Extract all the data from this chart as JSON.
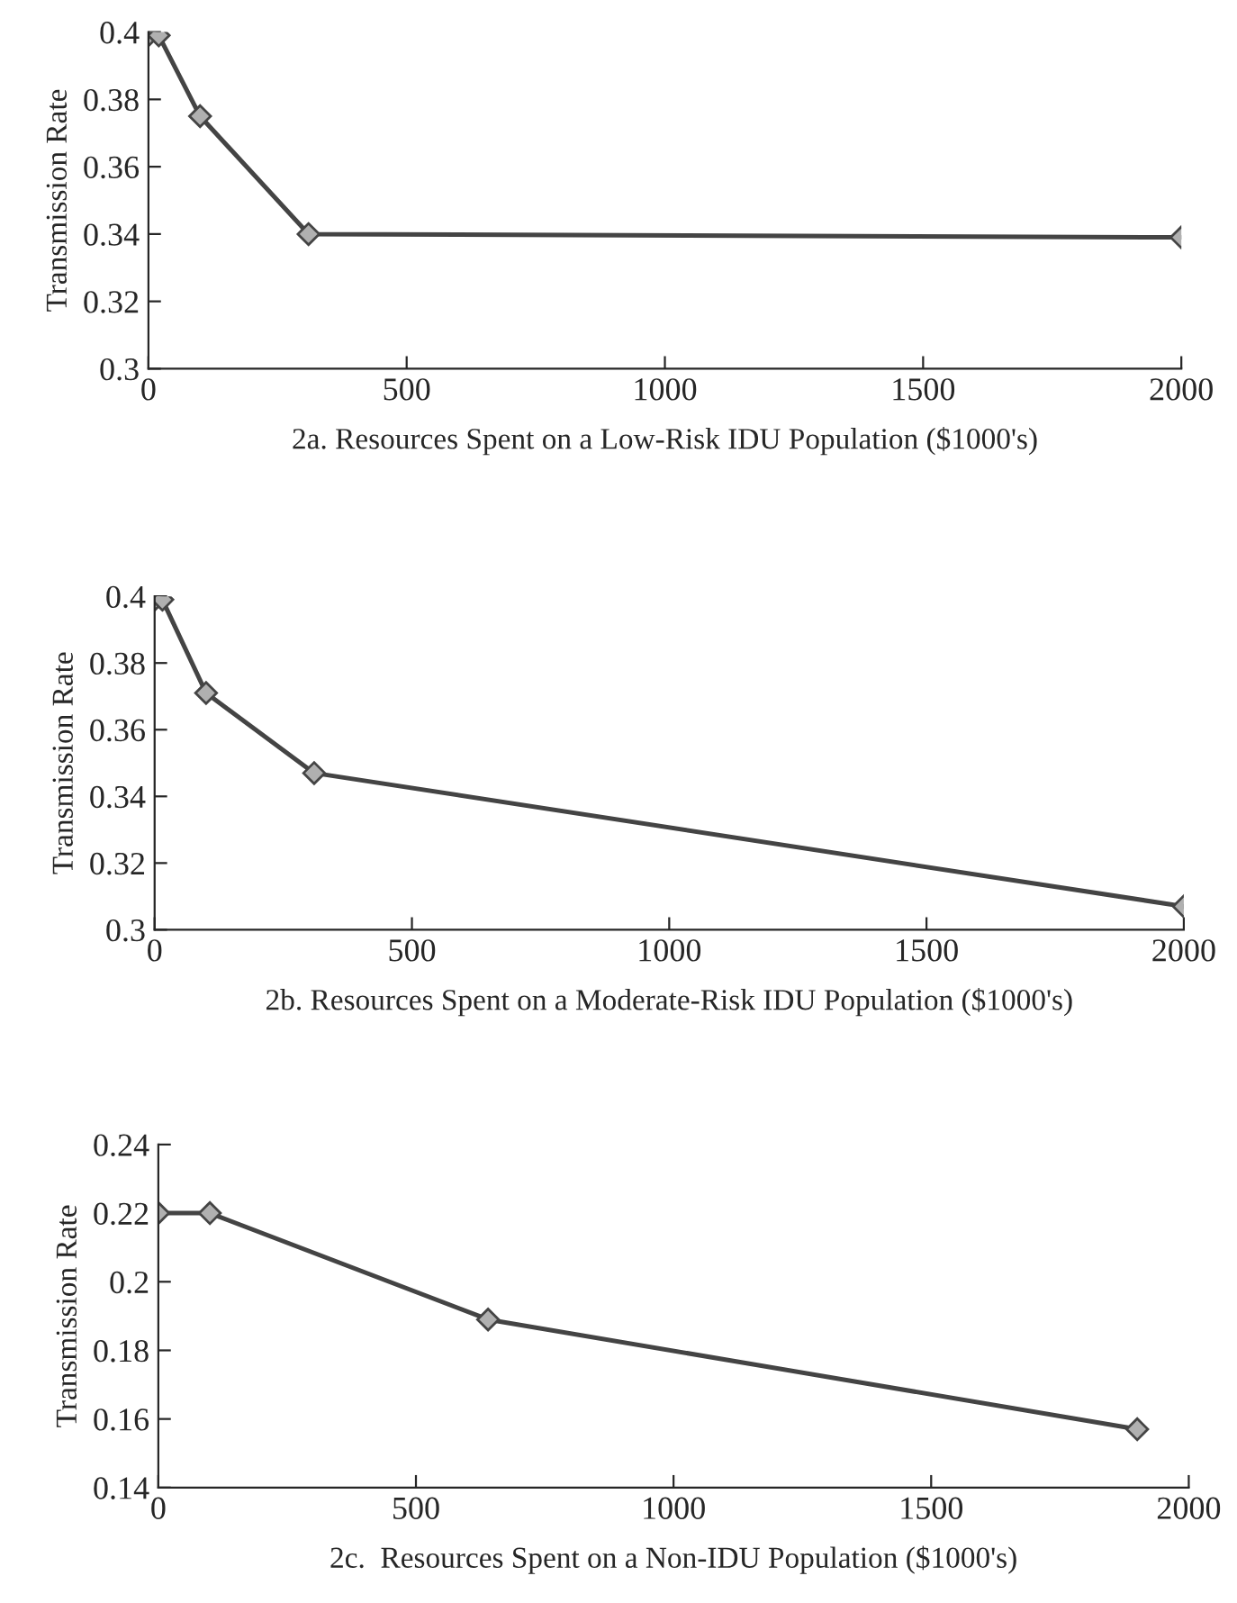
{
  "chart_data": [
    {
      "type": "line",
      "xlabel": "2a. Resources Spent on a Low-Risk IDU Population ($1000's)",
      "ylabel": "Transmission Rate",
      "x": [
        0,
        20,
        100,
        310,
        2000
      ],
      "series": [
        {
          "color": "#444444",
          "values": [
            0.399,
            0.399,
            0.375,
            0.34,
            0.339
          ]
        }
      ],
      "xlim": [
        0,
        2000
      ],
      "xticks": [
        0,
        500,
        1000,
        1500,
        2000
      ],
      "ylim": [
        0.3,
        0.4
      ],
      "yticks": [
        0.3,
        0.32,
        0.34,
        0.36,
        0.38,
        0.4
      ],
      "marker": "diamond",
      "grid": false,
      "legend": false
    },
    {
      "type": "line",
      "xlabel": "2b. Resources Spent on a Moderate-Risk IDU Population ($1000's)",
      "ylabel": "Transmission Rate",
      "x": [
        0,
        15,
        100,
        310,
        2000
      ],
      "series": [
        {
          "color": "#444444",
          "values": [
            0.399,
            0.399,
            0.371,
            0.347,
            0.307
          ]
        }
      ],
      "xlim": [
        0,
        2000
      ],
      "xticks": [
        0,
        500,
        1000,
        1500,
        2000
      ],
      "ylim": [
        0.3,
        0.4
      ],
      "yticks": [
        0.3,
        0.32,
        0.34,
        0.36,
        0.38,
        0.4
      ],
      "marker": "diamond",
      "grid": false,
      "legend": false
    },
    {
      "type": "line",
      "xlabel": "2c.  Resources Spent on a Non-IDU Population ($1000's)",
      "ylabel": "Transmission Rate",
      "x": [
        0,
        100,
        640,
        1900
      ],
      "series": [
        {
          "color": "#444444",
          "values": [
            0.22,
            0.22,
            0.189,
            0.157
          ]
        }
      ],
      "xlim": [
        0,
        2000
      ],
      "xticks": [
        0,
        500,
        1000,
        1500,
        2000
      ],
      "ylim": [
        0.14,
        0.24
      ],
      "yticks": [
        0.14,
        0.16,
        0.18,
        0.2,
        0.22,
        0.24
      ],
      "marker": "diamond",
      "grid": false,
      "legend": false
    }
  ]
}
